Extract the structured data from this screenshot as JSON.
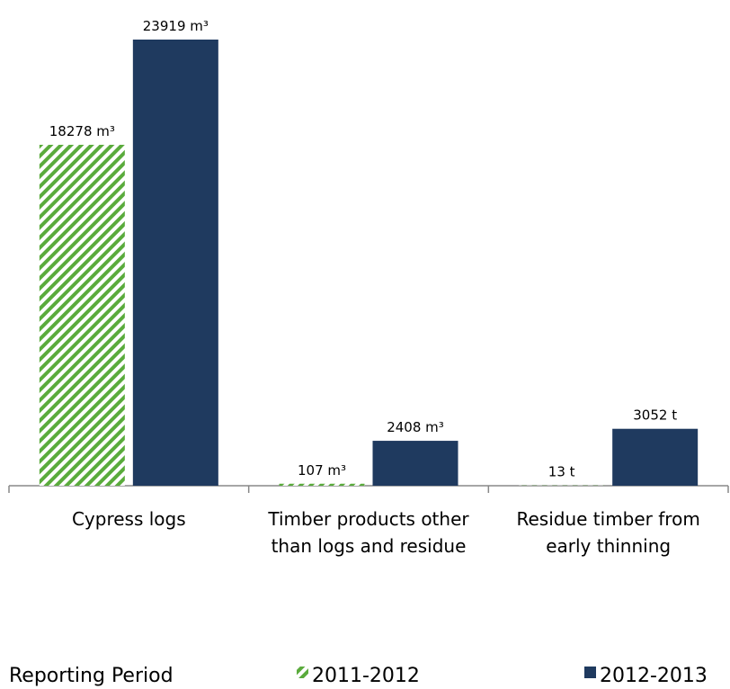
{
  "chart_data": {
    "type": "bar",
    "categories": [
      "Cypress logs",
      "Timber products other than logs and residue",
      "Residue timber from early thinning"
    ],
    "series": [
      {
        "name": "2011-2012",
        "color": "#5aab3c",
        "pattern": "hatch",
        "values": [
          18278,
          107,
          13
        ],
        "value_labels": [
          "18278 m³",
          "107 m³",
          "13 t"
        ]
      },
      {
        "name": "2012-2013",
        "color": "#1f3a5f",
        "values": [
          23919,
          2408,
          3052
        ],
        "value_labels": [
          "23919 m³",
          "2408 m³",
          "3052 t"
        ]
      }
    ],
    "legend_title": "Reporting Period",
    "legend_position": "bottom"
  }
}
